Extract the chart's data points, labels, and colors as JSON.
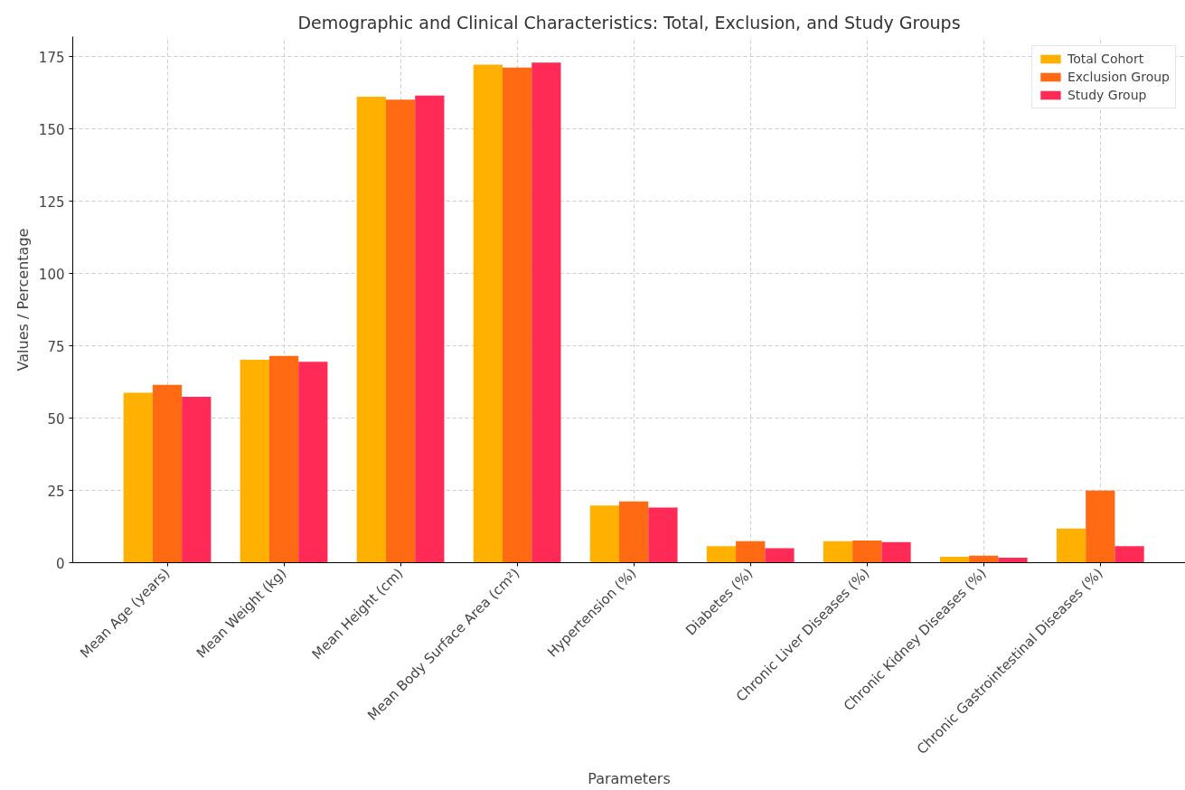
{
  "chart_data": {
    "type": "bar",
    "title": "Demographic and Clinical Characteristics: Total, Exclusion, and Study Groups",
    "xlabel": "Parameters",
    "ylabel": "Values / Percentage",
    "categories": [
      "Mean Age (years)",
      "Mean Weight (kg)",
      "Mean Height (cm)",
      "Mean Body Surface Area (cm²)",
      "Hypertension (%)",
      "Diabetes (%)",
      "Chronic Liver Diseases (%)",
      "Chronic Kidney Diseases (%)",
      "Chronic Gastrointestinal Diseases (%)"
    ],
    "series": [
      {
        "name": "Total Cohort",
        "color": "#ffb000",
        "values": [
          58.8,
          70.2,
          161.2,
          172.3,
          19.8,
          5.7,
          7.4,
          2.0,
          11.8
        ]
      },
      {
        "name": "Exclusion Group",
        "color": "#ff6a13",
        "values": [
          61.5,
          71.5,
          160.2,
          171.3,
          21.2,
          7.4,
          7.7,
          2.4,
          24.9
        ]
      },
      {
        "name": "Study Group",
        "color": "#ff2a55",
        "values": [
          57.4,
          69.5,
          161.6,
          173.0,
          19.1,
          5.0,
          7.1,
          1.7,
          5.7
        ]
      }
    ],
    "ylim": [
      0,
      182
    ],
    "yticks": [
      0,
      25,
      50,
      75,
      100,
      125,
      150,
      175
    ],
    "grid": true,
    "legend": "top right"
  }
}
